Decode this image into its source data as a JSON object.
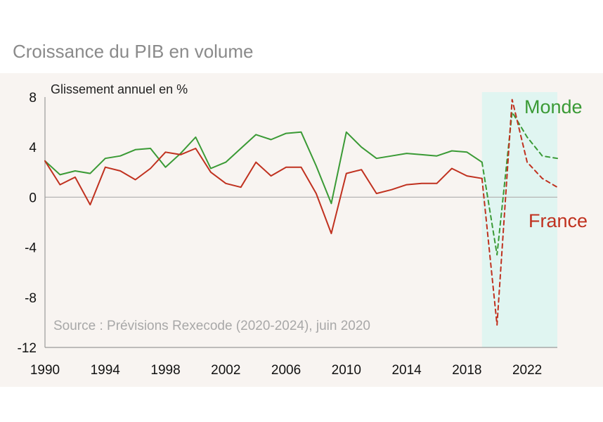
{
  "page_title": "Croissance du PIB en volume",
  "chart_data": {
    "type": "line",
    "ylabel": "Glissement annuel en %",
    "source": "Source : Prévisions Rexecode (2020-2024), juin 2020",
    "ylim": [
      -12,
      8
    ],
    "yticks": [
      8,
      4,
      0,
      -4,
      -8,
      -12
    ],
    "ytick_labels": [
      "8",
      "4",
      "0",
      "-4",
      "-8",
      "-12"
    ],
    "xlim": [
      1990,
      2024
    ],
    "xticks": [
      1990,
      1994,
      1998,
      2002,
      2006,
      2010,
      2014,
      2018,
      2022
    ],
    "xtick_labels": [
      "1990",
      "1994",
      "1998",
      "2002",
      "2006",
      "2010",
      "2014",
      "2018",
      "2022"
    ],
    "forecast_range": [
      2019,
      2024
    ],
    "series": [
      {
        "name": "Monde",
        "color": "#3a9a35",
        "actual": {
          "x": [
            1990,
            1991,
            1992,
            1993,
            1994,
            1995,
            1996,
            1997,
            1998,
            1999,
            2000,
            2001,
            2002,
            2003,
            2004,
            2005,
            2006,
            2007,
            2008,
            2009,
            2010,
            2011,
            2012,
            2013,
            2014,
            2015,
            2016,
            2017,
            2018,
            2019
          ],
          "y": [
            2.9,
            1.8,
            2.1,
            1.9,
            3.1,
            3.3,
            3.8,
            3.9,
            2.4,
            3.5,
            4.8,
            2.3,
            2.8,
            3.9,
            5.0,
            4.6,
            5.1,
            5.2,
            2.5,
            -0.5,
            5.2,
            4.0,
            3.1,
            3.3,
            3.5,
            3.4,
            3.3,
            3.7,
            3.6,
            2.8
          ]
        },
        "forecast": {
          "x": [
            2019,
            2020,
            2021,
            2022,
            2023,
            2024
          ],
          "y": [
            2.8,
            -4.6,
            6.8,
            4.8,
            3.3,
            3.1
          ]
        }
      },
      {
        "name": "France",
        "color": "#c0311f",
        "actual": {
          "x": [
            1990,
            1991,
            1992,
            1993,
            1994,
            1995,
            1996,
            1997,
            1998,
            1999,
            2000,
            2001,
            2002,
            2003,
            2004,
            2005,
            2006,
            2007,
            2008,
            2009,
            2010,
            2011,
            2012,
            2013,
            2014,
            2015,
            2016,
            2017,
            2018,
            2019
          ],
          "y": [
            2.9,
            1.0,
            1.6,
            -0.6,
            2.4,
            2.1,
            1.4,
            2.3,
            3.6,
            3.4,
            3.9,
            2.0,
            1.1,
            0.8,
            2.8,
            1.7,
            2.4,
            2.4,
            0.3,
            -2.9,
            1.9,
            2.2,
            0.3,
            0.6,
            1.0,
            1.1,
            1.1,
            2.3,
            1.7,
            1.5
          ]
        },
        "forecast": {
          "x": [
            2019,
            2020,
            2021,
            2022,
            2023,
            2024
          ],
          "y": [
            1.5,
            -10.2,
            7.8,
            2.8,
            1.5,
            0.8
          ]
        }
      }
    ]
  },
  "colors": {
    "panel_bg": "#f8f4f1",
    "forecast_bg": "#e0f5f1",
    "axis": "#9a9a9a",
    "zero_line": "#b5b5b5"
  }
}
